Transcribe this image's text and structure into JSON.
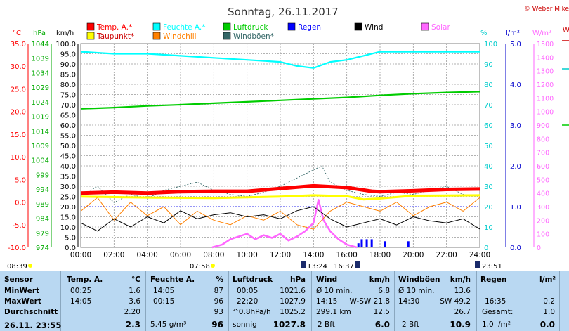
{
  "title": "Sonntag, 26.11.2017",
  "copyright": "© Weber Mike",
  "legend": [
    {
      "label": "Temp. A.*",
      "color": "#ff0000"
    },
    {
      "label": "Feuchte A.*",
      "color": "#00ffff"
    },
    {
      "label": "Luftdruck",
      "color": "#00cc00"
    },
    {
      "label": "Regen",
      "color": "#0000ff"
    },
    {
      "label": "Wind",
      "color": "#000000"
    },
    {
      "label": "Solar",
      "color": "#ff66ff"
    },
    {
      "label": "Taupunkt*",
      "color": "#ffff00"
    },
    {
      "label": "Windchill",
      "color": "#ff8000"
    },
    {
      "label": "Windböen*",
      "color": "#336666"
    }
  ],
  "axis_units": {
    "temp": "°C",
    "pressure": "hPa",
    "wind": "km/h",
    "humidity": "%",
    "rain": "l/m²",
    "solar": "W/m²",
    "right_cut": "W"
  },
  "sun_times": {
    "sunrise": "08:39",
    "sunset": "07:58",
    "moonset": "13:24",
    "moonrise": "16:37",
    "moon2": "23:51"
  },
  "chart_data": {
    "type": "line",
    "x_ticks": [
      "00:00",
      "02:00",
      "04:00",
      "06:00",
      "08:00",
      "10:00",
      "12:00",
      "14:00",
      "16:00",
      "18:00",
      "20:00",
      "22:00",
      "24:00"
    ],
    "axes": {
      "temp": {
        "ticks": [
          "35.0",
          "30.0",
          "25.0",
          "20.0",
          "15.0",
          "10.0",
          "5.0",
          "0.0",
          "-5.0",
          "-10.0"
        ],
        "color": "#ff0000"
      },
      "pressure": {
        "ticks": [
          "1044",
          "1039",
          "1034",
          "1029",
          "1024",
          "1019",
          "1014",
          "1009",
          "1004",
          "999",
          "994",
          "989",
          "984",
          "979",
          "974"
        ],
        "color": "#00cc00"
      },
      "wind": {
        "ticks": [
          "100.0",
          "95.0",
          "90.0",
          "85.0",
          "80.0",
          "75.0",
          "70.0",
          "65.0",
          "60.0",
          "55.0",
          "50.0",
          "45.0",
          "40.0",
          "35.0",
          "30.0",
          "25.0",
          "20.0",
          "15.0",
          "10.0",
          "5.0",
          "0.0"
        ]
      },
      "humidity": {
        "ticks": [
          "100",
          "90",
          "80",
          "70",
          "60",
          "50",
          "40",
          "30",
          "20",
          "10",
          "0"
        ],
        "color": "#00cccc"
      },
      "rain": {
        "ticks": [
          "5.0",
          "4.0",
          "3.0",
          "2.0",
          "1.0",
          "0.0"
        ],
        "color": "#0000cc"
      },
      "solar": {
        "ticks": [
          "1500",
          "1400",
          "1300",
          "1200",
          "1100",
          "1000",
          "900",
          "800",
          "700",
          "600",
          "500",
          "400",
          "300",
          "200",
          "100",
          "0"
        ],
        "color": "#ff66ff"
      }
    },
    "series": [
      {
        "name": "Temp. A.*",
        "axis": "temp",
        "x": [
          0,
          2,
          4,
          6,
          8,
          10,
          12,
          14,
          16,
          17.5,
          18,
          20,
          22,
          24
        ],
        "y": [
          2.0,
          2.2,
          2.0,
          2.3,
          2.4,
          2.4,
          3.0,
          3.6,
          3.2,
          2.4,
          2.3,
          2.5,
          2.8,
          2.9
        ]
      },
      {
        "name": "Feuchte A.*",
        "axis": "humidity",
        "x": [
          0,
          2,
          4,
          6,
          8,
          10,
          12,
          13,
          14,
          15,
          16,
          17,
          18,
          20,
          22,
          24
        ],
        "y": [
          96,
          95,
          95,
          94,
          93,
          92,
          91,
          89,
          88,
          91,
          92,
          94,
          96,
          96,
          96,
          96
        ]
      },
      {
        "name": "Luftdruck",
        "axis": "pressure",
        "x": [
          0,
          2,
          4,
          6,
          8,
          10,
          12,
          14,
          16,
          18,
          20,
          22,
          24
        ],
        "y": [
          1021.6,
          1022,
          1022.6,
          1023,
          1023.5,
          1024,
          1024.5,
          1025,
          1025.5,
          1026.2,
          1026.8,
          1027.2,
          1027.5
        ]
      },
      {
        "name": "Taupunkt*",
        "axis": "temp",
        "x": [
          0,
          4,
          8,
          12,
          14,
          16,
          17,
          18,
          20,
          24
        ],
        "y": [
          1.2,
          1.0,
          0.9,
          1.2,
          1.5,
          1.3,
          0.6,
          0.8,
          1.4,
          1.5
        ]
      },
      {
        "name": "Wind",
        "axis": "wind",
        "x": [
          0,
          1,
          2,
          3,
          4,
          5,
          6,
          7,
          8,
          9,
          10,
          11,
          12,
          13,
          14,
          15,
          16,
          17,
          18,
          19,
          20,
          21,
          22,
          23,
          24
        ],
        "y": [
          12,
          8,
          14,
          10,
          15,
          12,
          18,
          14,
          16,
          17,
          15,
          16,
          14,
          18,
          20,
          14,
          10,
          12,
          14,
          11,
          15,
          13,
          12,
          14,
          9
        ]
      },
      {
        "name": "Windchill",
        "axis": "temp",
        "x": [
          0,
          1,
          2,
          3,
          4,
          5,
          6,
          7,
          8,
          9,
          10,
          11,
          12,
          13,
          14,
          15,
          16,
          17,
          18,
          19,
          20,
          21,
          22,
          23,
          24
        ],
        "y": [
          -2,
          1,
          -4,
          0,
          -3,
          -1,
          -5,
          -2,
          -4,
          -5,
          -3,
          -4,
          -2,
          -5,
          -6,
          -2,
          0,
          -1,
          -2,
          0,
          -3,
          -1,
          0,
          -2,
          1
        ]
      },
      {
        "name": "Windböen*",
        "axis": "wind",
        "x": [
          0,
          1,
          2,
          3,
          4,
          5,
          6,
          7,
          8,
          9,
          10,
          11,
          12,
          13,
          14,
          14.5,
          15,
          16,
          17,
          18,
          19,
          20,
          21,
          22,
          23,
          24
        ],
        "y": [
          25,
          30,
          22,
          26,
          24,
          28,
          30,
          32,
          28,
          26,
          25,
          27,
          30,
          34,
          38,
          40,
          32,
          28,
          26,
          25,
          27,
          26,
          28,
          30,
          26,
          25
        ]
      },
      {
        "name": "Solar",
        "axis": "solar",
        "x": [
          7.9,
          8.5,
          9,
          9.5,
          10,
          10.5,
          11,
          11.5,
          12,
          12.5,
          13,
          13.5,
          14,
          14.3,
          14.6,
          15,
          15.5,
          16,
          16.6
        ],
        "y": [
          0,
          20,
          60,
          80,
          100,
          60,
          90,
          70,
          100,
          50,
          80,
          120,
          180,
          350,
          200,
          120,
          60,
          20,
          0
        ]
      }
    ],
    "rain_bars": {
      "x": [
        16.7,
        16.9,
        17.2,
        17.5,
        18.3,
        19.7
      ],
      "y": [
        0.1,
        0.2,
        0.2,
        0.2,
        0.15,
        0.15
      ]
    }
  },
  "table": {
    "header": [
      "Sensor",
      "Temp. A.",
      "°C",
      "Feuchte A.",
      "%",
      "Luftdruck",
      "hPa",
      "Wind",
      "km/h",
      "Windböen",
      "km/h",
      "Regen",
      "l/m²"
    ],
    "rows": [
      {
        "label": "MinWert",
        "t_time": "00:25",
        "t_val": "1.6",
        "h_time": "14:05",
        "h_val": "87",
        "p_time": "00:05",
        "p_val": "1021.6",
        "w_a": "Ø 10 min.",
        "w_val": "6.8",
        "g_a": "Ø 10 min.",
        "g_val": "13.6",
        "r_a": "",
        "r_val": ""
      },
      {
        "label": "MaxWert",
        "t_time": "14:05",
        "t_val": "3.6",
        "h_time": "00:15",
        "h_val": "96",
        "p_time": "22:20",
        "p_val": "1027.9",
        "w_a": "14:15",
        "w_dir": "W-SW 21.8",
        "w_val": "",
        "g_a": "14:30",
        "g_dir": "SW 49.2",
        "g_val": "",
        "r_a": "16:35",
        "r_val": "0.2"
      },
      {
        "label": "Durchschnitt",
        "t_time": "",
        "t_val": "2.20",
        "h_time": "",
        "h_val": "93",
        "p_time": "^0.8hPa/h",
        "p_val": "1025.2",
        "w_a": "299.1 km",
        "w_val": "12.5",
        "g_a": "",
        "g_val": "26.7",
        "r_a": "Gesamt:",
        "r_val": "1.0"
      },
      {
        "label": "26.11. 23:55",
        "t_time": "",
        "t_val": "2.3",
        "h_time": "5.45 g/m³",
        "h_val": "96",
        "p_time": "sonnig",
        "p_val": "1027.8",
        "w_a": "2 Bft",
        "w_val": "6.0",
        "g_a": "2 Bft",
        "g_val": "10.9",
        "r_a": "1.0 l/m²",
        "r_val": "0.0"
      }
    ]
  }
}
